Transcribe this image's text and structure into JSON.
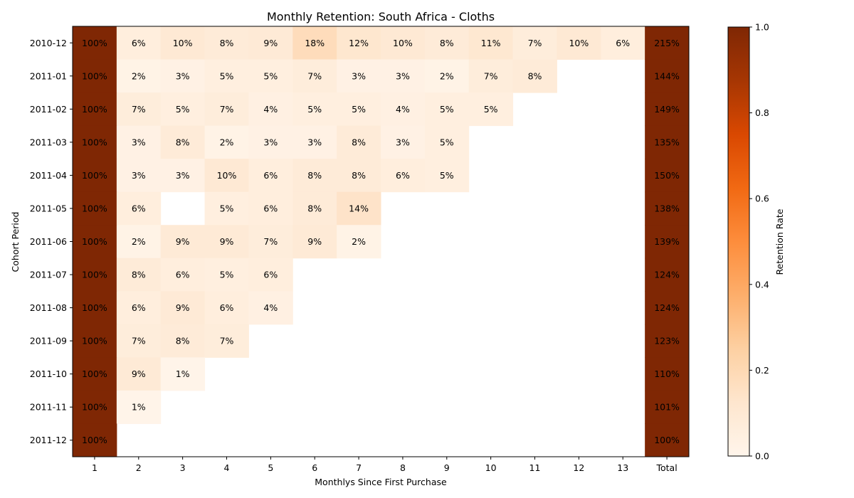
{
  "chart_data": {
    "type": "heatmap",
    "title": "Monthly Retention: South Africa - Cloths",
    "xlabel": "Monthlys Since First Purchase",
    "ylabel": "Cohort Period",
    "x_categories": [
      "1",
      "2",
      "3",
      "4",
      "5",
      "6",
      "7",
      "8",
      "9",
      "10",
      "11",
      "12",
      "13",
      "Total"
    ],
    "y_categories": [
      "2010-12",
      "2011-01",
      "2011-02",
      "2011-03",
      "2011-04",
      "2011-05",
      "2011-06",
      "2011-07",
      "2011-08",
      "2011-09",
      "2011-10",
      "2011-11",
      "2011-12"
    ],
    "values": [
      [
        1.0,
        0.06,
        0.1,
        0.08,
        0.09,
        0.18,
        0.12,
        0.1,
        0.08,
        0.11,
        0.07,
        0.1,
        0.06,
        2.15
      ],
      [
        1.0,
        0.02,
        0.03,
        0.05,
        0.05,
        0.07,
        0.03,
        0.03,
        0.02,
        0.07,
        0.08,
        null,
        null,
        1.44
      ],
      [
        1.0,
        0.07,
        0.05,
        0.07,
        0.04,
        0.05,
        0.05,
        0.04,
        0.05,
        0.05,
        null,
        null,
        null,
        1.49
      ],
      [
        1.0,
        0.03,
        0.08,
        0.02,
        0.03,
        0.03,
        0.08,
        0.03,
        0.05,
        null,
        null,
        null,
        null,
        1.35
      ],
      [
        1.0,
        0.03,
        0.03,
        0.1,
        0.06,
        0.08,
        0.08,
        0.06,
        0.05,
        null,
        null,
        null,
        null,
        1.5
      ],
      [
        1.0,
        0.06,
        null,
        0.05,
        0.06,
        0.08,
        0.14,
        null,
        null,
        null,
        null,
        null,
        null,
        1.38
      ],
      [
        1.0,
        0.02,
        0.09,
        0.09,
        0.07,
        0.09,
        0.02,
        null,
        null,
        null,
        null,
        null,
        null,
        1.39
      ],
      [
        1.0,
        0.08,
        0.06,
        0.05,
        0.06,
        null,
        null,
        null,
        null,
        null,
        null,
        null,
        null,
        1.24
      ],
      [
        1.0,
        0.06,
        0.09,
        0.06,
        0.04,
        null,
        null,
        null,
        null,
        null,
        null,
        null,
        null,
        1.24
      ],
      [
        1.0,
        0.07,
        0.08,
        0.07,
        null,
        null,
        null,
        null,
        null,
        null,
        null,
        null,
        null,
        1.23
      ],
      [
        1.0,
        0.09,
        0.01,
        null,
        null,
        null,
        null,
        null,
        null,
        null,
        null,
        null,
        null,
        1.1
      ],
      [
        1.0,
        0.01,
        null,
        null,
        null,
        null,
        null,
        null,
        null,
        null,
        null,
        null,
        null,
        1.01
      ],
      [
        1.0,
        null,
        null,
        null,
        null,
        null,
        null,
        null,
        null,
        null,
        null,
        null,
        null,
        1.0
      ]
    ],
    "colorbar": {
      "label": "Retention Rate",
      "range": [
        0,
        1
      ],
      "ticks": [
        "0.0",
        "0.2",
        "0.4",
        "0.6",
        "0.8",
        "1.0"
      ],
      "colormap": "Oranges",
      "stops": [
        "#fff5eb",
        "#fee6ce",
        "#fdd0a2",
        "#fdae6b",
        "#fd8d3c",
        "#f16913",
        "#d94801",
        "#a63603",
        "#7f2704"
      ]
    }
  }
}
